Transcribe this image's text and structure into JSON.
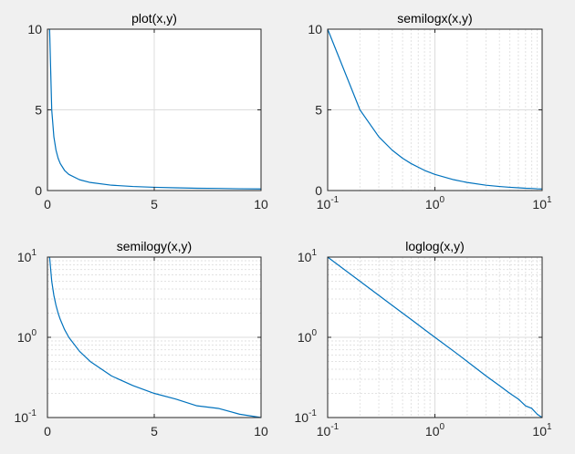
{
  "figure": {
    "background": "#f0f0f0"
  },
  "chart_data": [
    {
      "type": "line",
      "title": "plot(x,y)",
      "xscale": "linear",
      "yscale": "linear",
      "xlim": [
        0,
        10
      ],
      "ylim": [
        0,
        10
      ],
      "xticks": [
        {
          "v": 0,
          "t": "0"
        },
        {
          "v": 5,
          "t": "5"
        },
        {
          "v": 10,
          "t": "10"
        }
      ],
      "yticks": [
        {
          "v": 0,
          "t": "0"
        },
        {
          "v": 5,
          "t": "5"
        },
        {
          "v": 10,
          "t": "10"
        }
      ],
      "grid": true,
      "series": [
        {
          "color": "#0072bd",
          "x": [
            0.1,
            0.2,
            0.3,
            0.4,
            0.5,
            0.6,
            0.8,
            1,
            1.5,
            2,
            3,
            4,
            5,
            6,
            7,
            8,
            9,
            10
          ],
          "y": [
            10,
            5,
            3.33,
            2.5,
            2,
            1.67,
            1.25,
            1,
            0.67,
            0.5,
            0.33,
            0.25,
            0.2,
            0.17,
            0.14,
            0.13,
            0.11,
            0.1
          ]
        }
      ]
    },
    {
      "type": "line",
      "title": "semilogx(x,y)",
      "xscale": "log",
      "yscale": "linear",
      "xlim": [
        0.1,
        10
      ],
      "ylim": [
        0,
        10
      ],
      "xticks": [
        {
          "v": 0.1,
          "b": "10",
          "e": "-1"
        },
        {
          "v": 1,
          "b": "10",
          "e": "0"
        },
        {
          "v": 10,
          "b": "10",
          "e": "1"
        }
      ],
      "yticks": [
        {
          "v": 0,
          "t": "0"
        },
        {
          "v": 5,
          "t": "5"
        },
        {
          "v": 10,
          "t": "10"
        }
      ],
      "grid": true,
      "series": [
        {
          "color": "#0072bd",
          "x": [
            0.1,
            0.2,
            0.3,
            0.4,
            0.5,
            0.6,
            0.8,
            1,
            1.5,
            2,
            3,
            4,
            5,
            6,
            7,
            8,
            9,
            10
          ],
          "y": [
            10,
            5,
            3.33,
            2.5,
            2,
            1.67,
            1.25,
            1,
            0.67,
            0.5,
            0.33,
            0.25,
            0.2,
            0.17,
            0.14,
            0.13,
            0.11,
            0.1
          ]
        }
      ]
    },
    {
      "type": "line",
      "title": "semilogy(x,y)",
      "xscale": "linear",
      "yscale": "log",
      "xlim": [
        0,
        10
      ],
      "ylim": [
        0.1,
        10
      ],
      "xticks": [
        {
          "v": 0,
          "t": "0"
        },
        {
          "v": 5,
          "t": "5"
        },
        {
          "v": 10,
          "t": "10"
        }
      ],
      "yticks": [
        {
          "v": 0.1,
          "b": "10",
          "e": "-1"
        },
        {
          "v": 1,
          "b": "10",
          "e": "0"
        },
        {
          "v": 10,
          "b": "10",
          "e": "1"
        }
      ],
      "grid": true,
      "series": [
        {
          "color": "#0072bd",
          "x": [
            0.1,
            0.2,
            0.3,
            0.4,
            0.5,
            0.6,
            0.8,
            1,
            1.5,
            2,
            3,
            4,
            5,
            6,
            7,
            8,
            9,
            10
          ],
          "y": [
            10,
            5,
            3.33,
            2.5,
            2,
            1.67,
            1.25,
            1,
            0.67,
            0.5,
            0.33,
            0.25,
            0.2,
            0.17,
            0.14,
            0.13,
            0.11,
            0.1
          ]
        }
      ]
    },
    {
      "type": "line",
      "title": "loglog(x,y)",
      "xscale": "log",
      "yscale": "log",
      "xlim": [
        0.1,
        10
      ],
      "ylim": [
        0.1,
        10
      ],
      "xticks": [
        {
          "v": 0.1,
          "b": "10",
          "e": "-1"
        },
        {
          "v": 1,
          "b": "10",
          "e": "0"
        },
        {
          "v": 10,
          "b": "10",
          "e": "1"
        }
      ],
      "yticks": [
        {
          "v": 0.1,
          "b": "10",
          "e": "-1"
        },
        {
          "v": 1,
          "b": "10",
          "e": "0"
        },
        {
          "v": 10,
          "b": "10",
          "e": "1"
        }
      ],
      "grid": true,
      "series": [
        {
          "color": "#0072bd",
          "x": [
            0.1,
            0.2,
            0.3,
            0.4,
            0.5,
            0.6,
            0.8,
            1,
            1.5,
            2,
            3,
            4,
            5,
            6,
            7,
            8,
            9,
            10
          ],
          "y": [
            10,
            5,
            3.33,
            2.5,
            2,
            1.67,
            1.25,
            1,
            0.67,
            0.5,
            0.33,
            0.25,
            0.2,
            0.17,
            0.14,
            0.13,
            0.11,
            0.1
          ]
        }
      ]
    }
  ]
}
